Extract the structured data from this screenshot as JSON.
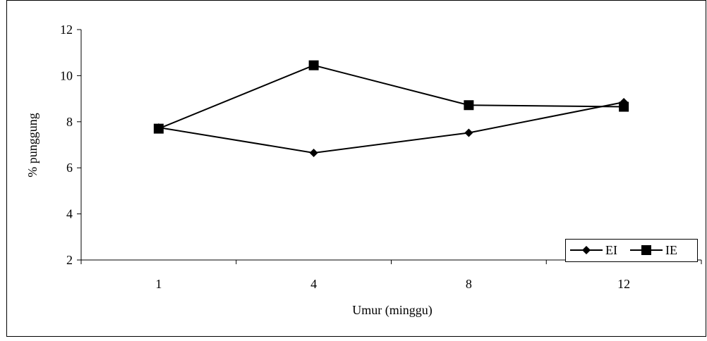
{
  "chart_data": {
    "type": "line",
    "categories": [
      "1",
      "4",
      "8",
      "12"
    ],
    "xlabel": "Umur (minggu)",
    "ylabel": "% punggung",
    "ylim": [
      2,
      12
    ],
    "yticks": [
      2,
      4,
      6,
      8,
      10,
      12
    ],
    "grid": false,
    "legend_position": "bottom-right",
    "series": [
      {
        "name": "EI",
        "marker": "diamond",
        "color": "#000000",
        "values": [
          7.75,
          6.65,
          7.52,
          8.85
        ]
      },
      {
        "name": "IE",
        "marker": "square",
        "color": "#000000",
        "values": [
          7.7,
          10.45,
          8.72,
          8.65
        ]
      }
    ]
  }
}
